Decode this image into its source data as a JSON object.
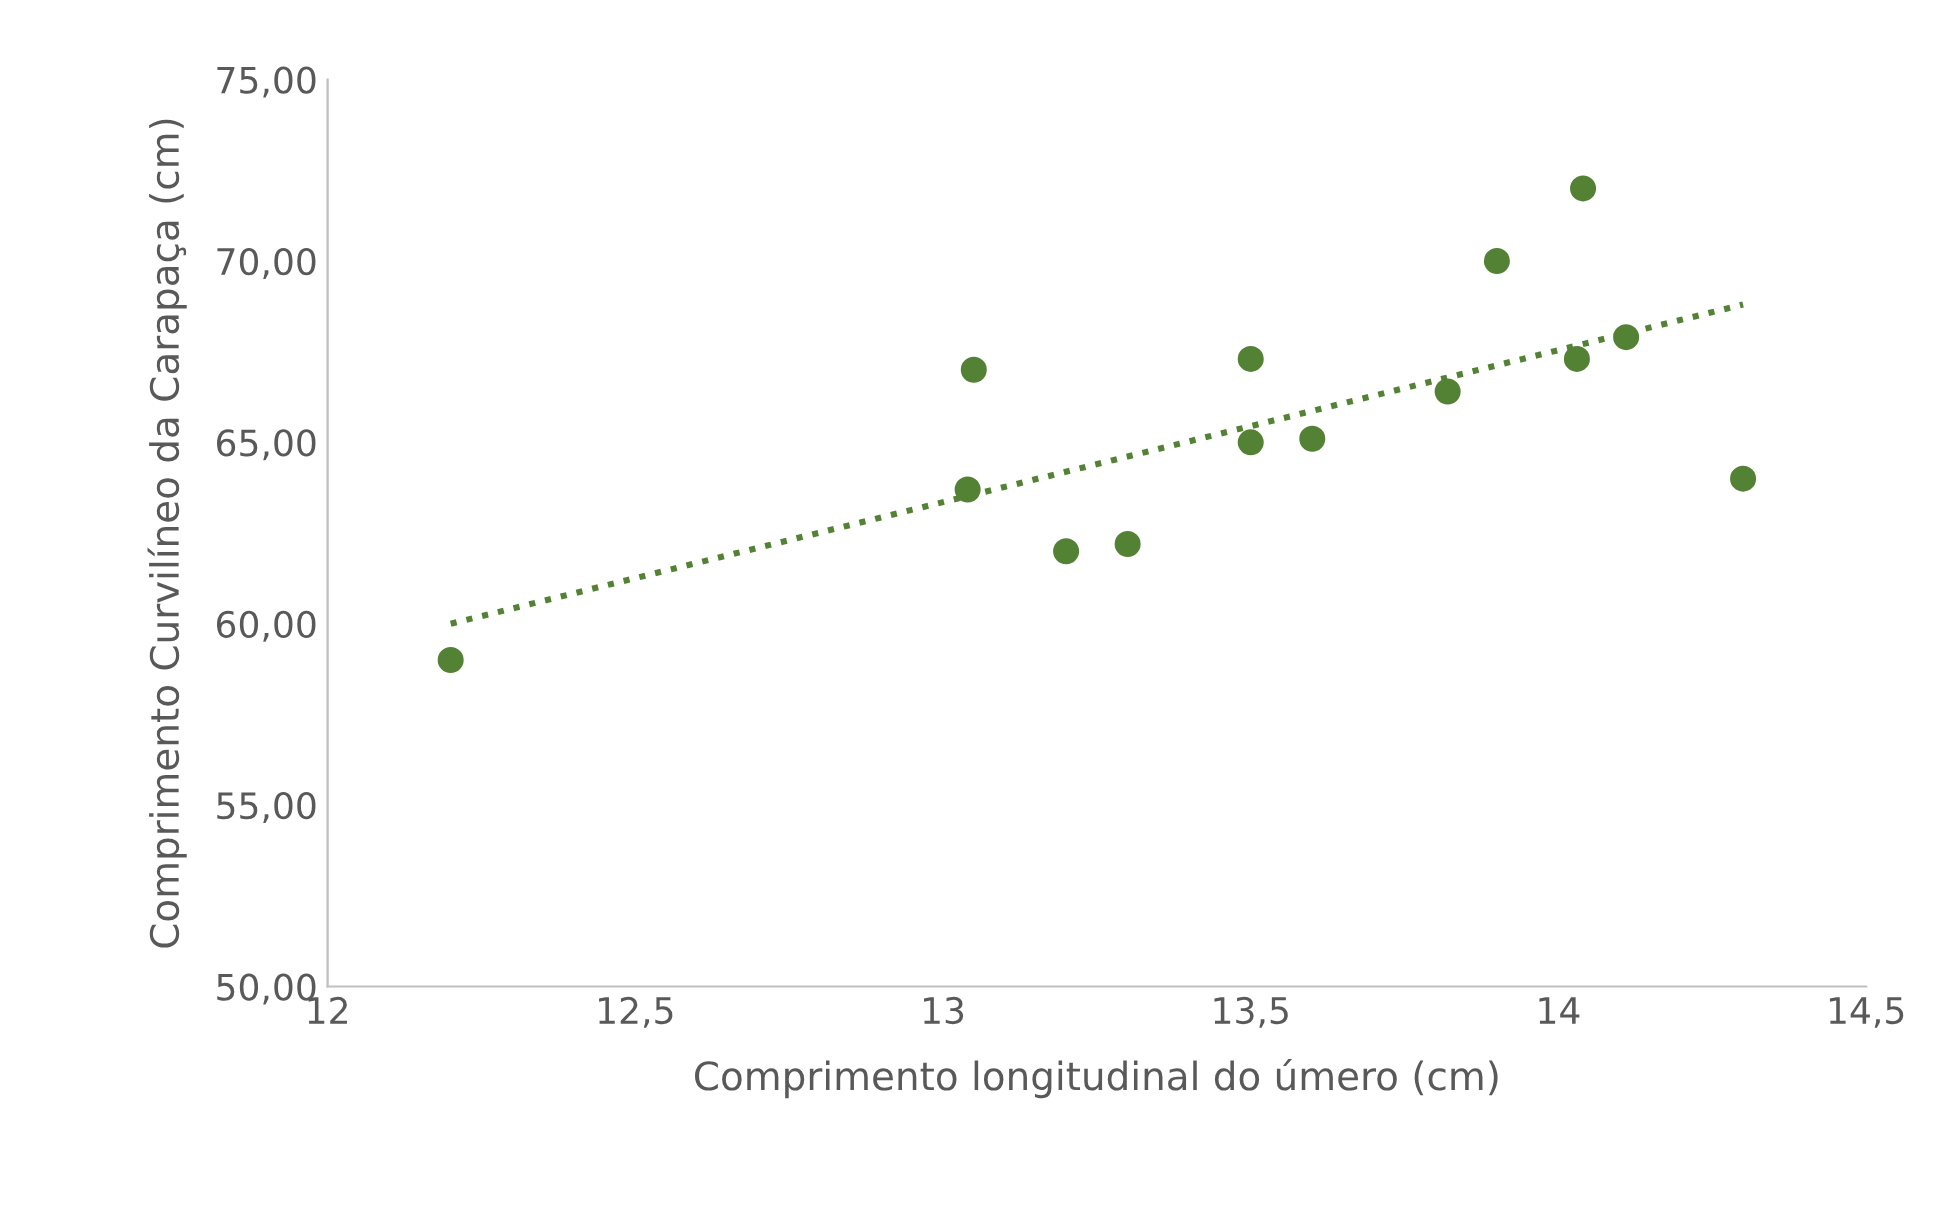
{
  "chart_data": {
    "type": "scatter",
    "xlabel": "Comprimento longitudinal do úmero (cm)",
    "ylabel": "Comprimento Curvilíneo da Carapaça (cm)",
    "x": [
      12.2,
      13.05,
      13.04,
      13.2,
      13.3,
      13.5,
      13.5,
      13.6,
      13.82,
      13.9,
      14.04,
      14.03,
      14.11,
      14.3
    ],
    "series": [
      {
        "color": "#548235",
        "marker": "circle",
        "values": [
          59.0,
          67.0,
          63.7,
          62.0,
          62.2,
          67.3,
          65.0,
          65.1,
          66.4,
          70.0,
          72.0,
          67.3,
          67.9,
          64.0
        ]
      },
      {
        "type": "line",
        "color": "#548235",
        "line_style": "dotted",
        "x": [
          12.2,
          14.3
        ],
        "values": [
          60.0,
          68.8
        ]
      }
    ],
    "xlim": [
      12,
      14.5
    ],
    "xticks": [
      12,
      {
        "value": 12.5,
        "label": "12,5"
      },
      13,
      {
        "value": 13.5,
        "label": "13,5"
      },
      14,
      {
        "value": 14.5,
        "label": "14,5"
      }
    ],
    "ylim": [
      50,
      75
    ],
    "yticks": [
      {
        "value": 50,
        "label": "50,00"
      },
      {
        "value": 55,
        "label": "55,00"
      },
      {
        "value": 60,
        "label": "60,00"
      },
      {
        "value": 65,
        "label": "65,00"
      },
      {
        "value": 70,
        "label": "70,00"
      },
      {
        "value": 75,
        "label": "75,00"
      }
    ],
    "grid": false,
    "legend": false
  }
}
